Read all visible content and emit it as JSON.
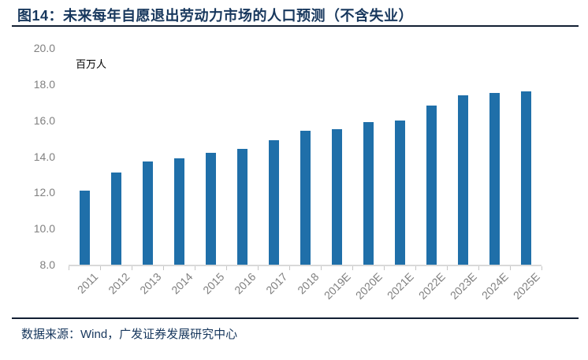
{
  "figure": {
    "title": "图14：未来每年自愿退出劳动力市场的人口预测（不含失业）",
    "source": "数据来源：Wind，广发证券发展研究中心"
  },
  "chart_data": {
    "type": "bar",
    "title": "未来每年自愿退出劳动力市场的人口预测（不含失业）",
    "figure_label": "图14",
    "unit_label": "百万人",
    "categories": [
      "2011",
      "2012",
      "2013",
      "2014",
      "2015",
      "2016",
      "2017",
      "2018",
      "2019E",
      "2020E",
      "2021E",
      "2022E",
      "2023E",
      "2024E",
      "2025E"
    ],
    "values": [
      12.1,
      13.1,
      13.7,
      13.9,
      14.2,
      14.4,
      14.9,
      15.4,
      15.5,
      15.9,
      16.0,
      16.8,
      17.4,
      17.5,
      17.6
    ],
    "ylim": [
      8.0,
      20.0
    ],
    "yticks": [
      "20.0",
      "18.0",
      "16.0",
      "14.0",
      "12.0",
      "10.0",
      "8.0"
    ],
    "grid": false,
    "legend_position": "none"
  },
  "colors": {
    "bar": "#1F6FA9",
    "title": "#17375D",
    "rule": "#121F33",
    "axis_line": "#D9D9D9",
    "tick_label": "#808080",
    "unit_label": "#000000",
    "background": "#FFFFFF"
  }
}
